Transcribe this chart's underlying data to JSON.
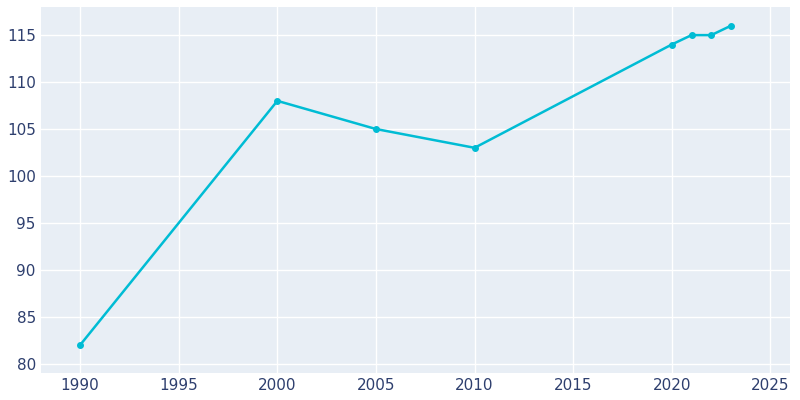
{
  "years": [
    1990,
    2000,
    2005,
    2010,
    2020,
    2021,
    2022,
    2023
  ],
  "population": [
    82,
    108,
    105,
    103,
    114,
    115,
    115,
    116
  ],
  "line_color": "#00bcd4",
  "marker": "o",
  "marker_size": 4,
  "line_width": 1.8,
  "xlim": [
    1988,
    2026
  ],
  "ylim": [
    79,
    118
  ],
  "xticks": [
    1990,
    1995,
    2000,
    2005,
    2010,
    2015,
    2020,
    2025
  ],
  "yticks": [
    80,
    85,
    90,
    95,
    100,
    105,
    110,
    115
  ],
  "bg_color": "#e8eef5",
  "fig_bg_color": "#ffffff",
  "grid_color": "#ffffff",
  "tick_label_color": "#2e3f6e",
  "tick_label_fontsize": 11
}
